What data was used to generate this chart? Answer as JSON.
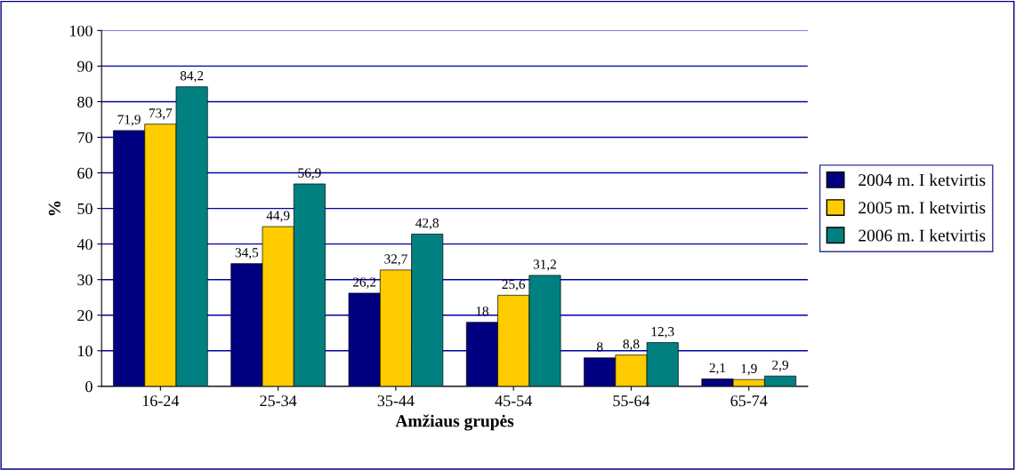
{
  "chart_data": {
    "type": "bar",
    "xlabel": "Amžiaus grupės",
    "ylabel": "%",
    "categories": [
      "16-24",
      "25-34",
      "35-44",
      "45-54",
      "55-64",
      "65-74"
    ],
    "series": [
      {
        "name": "2004 m. I ketvirtis",
        "color": "#000080",
        "values": [
          71.9,
          34.5,
          26.2,
          18,
          8,
          2.1
        ],
        "value_labels": [
          "71,9",
          "34,5",
          "26,2",
          "18",
          "8",
          "2,1"
        ]
      },
      {
        "name": "2005 m. I ketvirtis",
        "color": "#ffcc00",
        "values": [
          73.7,
          44.9,
          32.7,
          25.6,
          8.8,
          1.9
        ],
        "value_labels": [
          "73,7",
          "44,9",
          "32,7",
          "25,6",
          "8,8",
          "1,9"
        ]
      },
      {
        "name": "2006 m. I ketvirtis",
        "color": "#008080",
        "values": [
          84.2,
          56.9,
          42.8,
          31.2,
          12.3,
          2.9
        ],
        "value_labels": [
          "84,2",
          "56,9",
          "42,8",
          "31,2",
          "12,3",
          "2,9"
        ]
      }
    ],
    "ylim": [
      0,
      100
    ],
    "yticks": [
      0,
      10,
      20,
      30,
      40,
      50,
      60,
      70,
      80,
      90,
      100
    ],
    "grid": "y",
    "legend": "right"
  }
}
